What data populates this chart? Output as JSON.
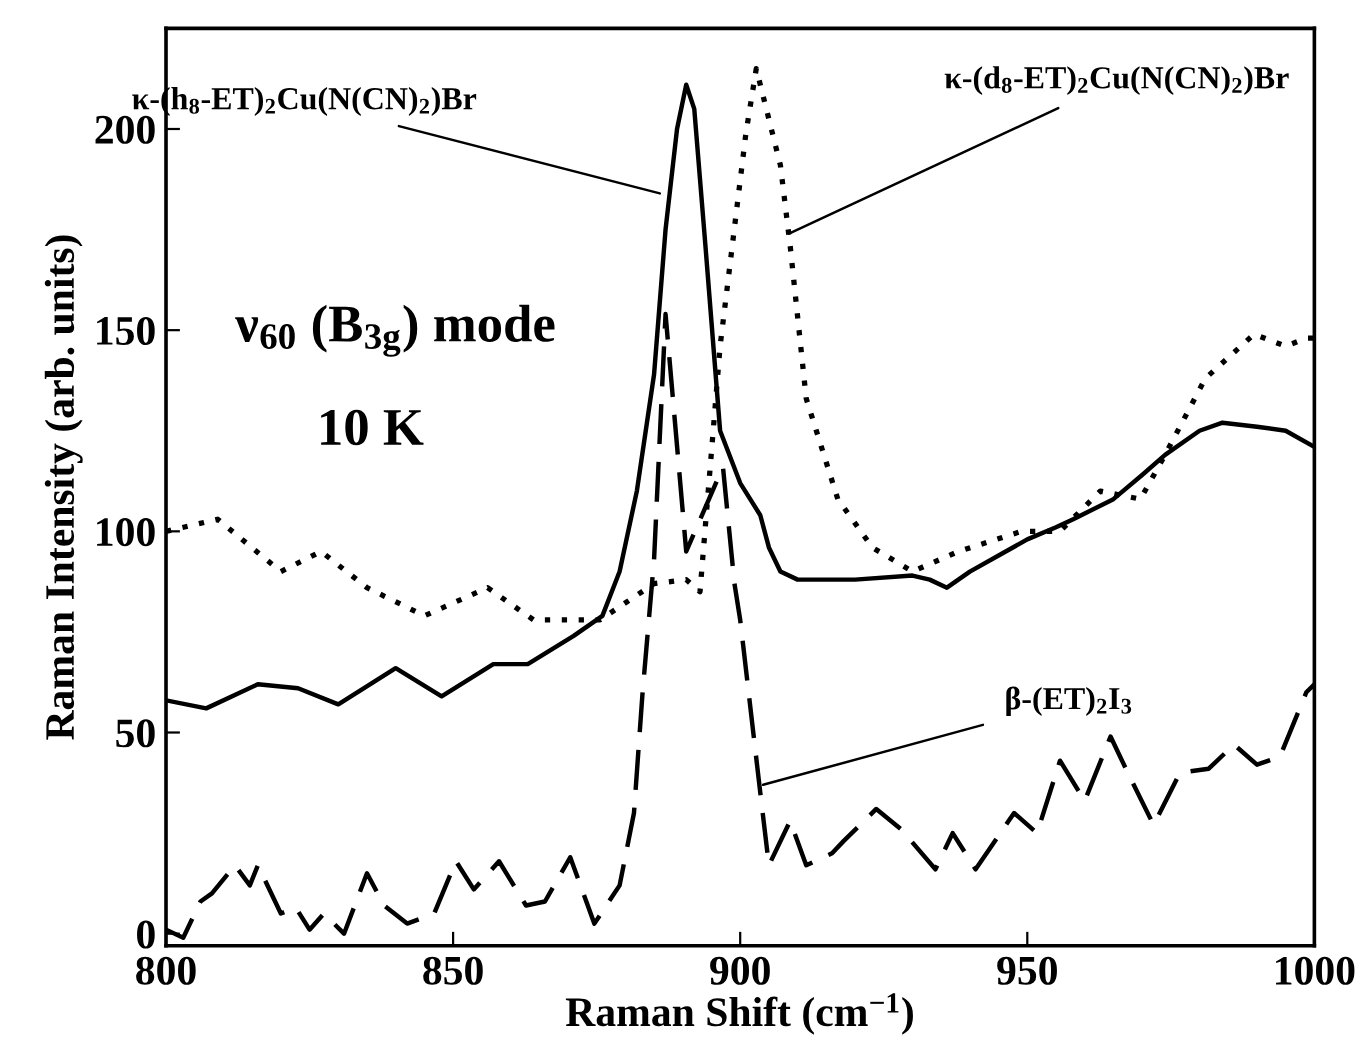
{
  "chart_data": {
    "type": "line",
    "xlabel": "Raman Shift (cm$^{−1}$)",
    "ylabel": "Raman Intensity (arb. units)",
    "xlim": [
      800,
      1000
    ],
    "xticks": [
      800,
      850,
      900,
      950,
      1000
    ],
    "ylim": [
      -3,
      225
    ],
    "yticks": [
      0,
      50,
      100,
      150,
      200
    ],
    "grid": false,
    "annotations": [
      {
        "text": "κ-(h$_{8}$-ET)$_{2}$Cu(N(CN)$_{2}$)Br",
        "x": 886,
        "y": 184
      },
      {
        "text": "κ-(d$_{8}$-ET)$_{2}$Cu(N(CN)$_{2}$)Br",
        "x": 908.5,
        "y": 174
      },
      {
        "text": "β-(ET)$_{2}$I$_{3}$",
        "x": 904,
        "y": 37
      },
      "ν$_{60}$ (B$_{3g}$) mode",
      "10 K"
    ],
    "series": [
      {
        "color": "#000000",
        "line_style": "solid",
        "x": [
          800,
          807,
          816,
          823,
          830,
          840,
          848,
          857,
          863,
          871,
          876,
          879,
          882,
          885,
          887,
          889,
          890.6,
          892,
          894,
          896.5,
          900,
          903.5,
          905,
          907,
          910,
          920,
          930,
          933,
          936,
          940,
          945,
          950,
          955,
          958,
          965,
          970,
          974,
          980,
          984,
          990,
          995,
          1000
        ],
        "values": [
          58,
          56,
          62,
          61,
          57,
          66,
          59,
          67,
          67,
          74,
          79,
          90,
          110,
          139,
          175,
          200,
          211,
          205,
          170,
          125,
          112,
          104,
          96,
          90,
          88,
          88,
          89,
          88,
          86,
          90,
          94,
          98,
          101,
          103,
          108,
          114,
          119,
          125,
          127,
          126,
          125,
          121
        ]
      },
      {
        "color": "#000000",
        "line_style": "dotted",
        "x": [
          800,
          809,
          820,
          827,
          835,
          845,
          856,
          864,
          875.6,
          885,
          890.6,
          893,
          896.5,
          901,
          902.8,
          907,
          908.7,
          911.5,
          917,
          923,
          930,
          938,
          949,
          955.7,
          962.7,
          969.7,
          974,
          981,
          989.5,
          995,
          998.6,
          1000
        ],
        "values": [
          100,
          103,
          90,
          95,
          86,
          79,
          86,
          78,
          78,
          87,
          88,
          85,
          146,
          199,
          215,
          191,
          171,
          133,
          108,
          96,
          90,
          95,
          100,
          100,
          110,
          108,
          119,
          138,
          149,
          146,
          148,
          148
        ]
      },
      {
        "color": "#000000",
        "line_style": "dashed",
        "x": [
          800,
          803,
          806,
          808,
          812,
          814.6,
          816,
          820,
          822.6,
          825,
          827.5,
          831,
          835,
          838,
          842,
          846.7,
          850.5,
          853.6,
          858,
          862.7,
          866,
          870.4,
          874.6,
          879,
          881.5,
          883,
          885,
          887,
          890.6,
          897,
          899,
          900,
          903.5,
          905,
          908.7,
          911.5,
          916,
          918,
          923.7,
          928,
          934,
          937,
          941,
          947.7,
          951.7,
          955.7,
          960,
          964.5,
          967.5,
          972,
          976.6,
          981.6,
          986,
          990,
          994,
          998.6,
          1000
        ],
        "values": [
          1,
          -1,
          8,
          10,
          17,
          12,
          17,
          5,
          6.5,
          1,
          5,
          0,
          15,
          7,
          2.5,
          5,
          18,
          11,
          18,
          7,
          8,
          19,
          2.5,
          12,
          30,
          60,
          93,
          154,
          95,
          116,
          87,
          78,
          35,
          17,
          28,
          17,
          20,
          23,
          31,
          26,
          16,
          25,
          16,
          30,
          25,
          43,
          33,
          49,
          40,
          27,
          40,
          41,
          47,
          42,
          44,
          60,
          62
        ]
      }
    ]
  }
}
